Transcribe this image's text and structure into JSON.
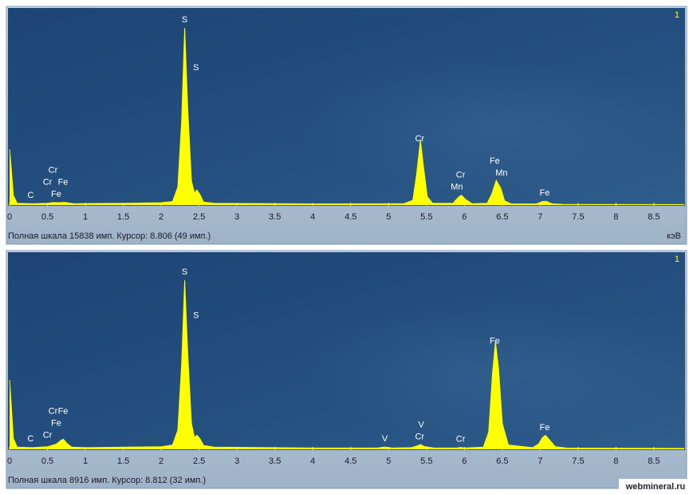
{
  "chart_data": [
    {
      "type": "area",
      "corner_label": "1",
      "x": [
        0,
        0.02,
        0.05,
        0.1,
        0.3,
        0.5,
        0.57,
        0.65,
        0.72,
        0.85,
        1.5,
        2.0,
        2.15,
        2.22,
        2.27,
        2.31,
        2.35,
        2.4,
        2.44,
        2.47,
        2.51,
        2.56,
        2.7,
        4.0,
        5.2,
        5.32,
        5.37,
        5.42,
        5.46,
        5.51,
        5.58,
        5.85,
        5.92,
        5.96,
        6.02,
        6.1,
        6.3,
        6.36,
        6.42,
        6.48,
        6.53,
        6.62,
        6.95,
        7.03,
        7.08,
        7.15,
        7.3,
        8.9
      ],
      "values": [
        4620,
        3200,
        800,
        150,
        120,
        150,
        220,
        200,
        230,
        120,
        150,
        200,
        300,
        1500,
        7000,
        14700,
        8000,
        2000,
        1000,
        1250,
        900,
        250,
        150,
        100,
        110,
        400,
        2600,
        5390,
        3200,
        700,
        150,
        150,
        650,
        830,
        450,
        120,
        150,
        900,
        2050,
        1400,
        350,
        100,
        100,
        300,
        320,
        120,
        60,
        40
      ],
      "color": "#ffff00",
      "xlim": [
        0,
        8.9
      ],
      "ylim": [
        0,
        15838
      ],
      "xticks": [
        0,
        0.5,
        1,
        1.5,
        2,
        2.5,
        3,
        3.5,
        4,
        4.5,
        5,
        5.5,
        6,
        6.5,
        7,
        7.5,
        8,
        8.5
      ],
      "annotations": [
        {
          "text": "C",
          "x": 0.277
        },
        {
          "text": "Fe",
          "x": 0.615
        },
        {
          "text": "Cr",
          "x": 0.5
        },
        {
          "text": "Fe",
          "x": 0.705
        },
        {
          "text": "Cr",
          "x": 0.573
        },
        {
          "text": "S",
          "x": 2.31
        },
        {
          "text": "S",
          "x": 2.46
        },
        {
          "text": "Cr",
          "x": 5.41
        },
        {
          "text": "Mn",
          "x": 5.9
        },
        {
          "text": "Cr",
          "x": 5.95
        },
        {
          "text": "Mn",
          "x": 6.49
        },
        {
          "text": "Fe",
          "x": 6.4
        },
        {
          "text": "Fe",
          "x": 7.06
        }
      ],
      "status": "Полная шкала 15838 имп. Курсор: 8.806  (49 имп.)",
      "x_unit": "кэВ"
    },
    {
      "type": "area",
      "corner_label": "1",
      "x": [
        0,
        0.02,
        0.05,
        0.1,
        0.3,
        0.5,
        0.62,
        0.68,
        0.71,
        0.75,
        0.82,
        1.0,
        2.0,
        2.15,
        2.22,
        2.27,
        2.31,
        2.35,
        2.4,
        2.44,
        2.47,
        2.51,
        2.56,
        2.7,
        4.0,
        4.85,
        4.95,
        5.05,
        5.3,
        5.37,
        5.42,
        5.47,
        5.6,
        5.9,
        5.95,
        6.0,
        6.25,
        6.32,
        6.37,
        6.41,
        6.45,
        6.5,
        6.58,
        6.9,
        6.98,
        7.03,
        7.07,
        7.12,
        7.2,
        7.35,
        8.9
      ],
      "values": [
        3240,
        2200,
        500,
        100,
        80,
        120,
        250,
        420,
        470,
        300,
        100,
        80,
        120,
        200,
        900,
        4000,
        7900,
        4500,
        1200,
        550,
        655,
        500,
        180,
        100,
        60,
        60,
        110,
        60,
        80,
        150,
        220,
        130,
        60,
        60,
        90,
        60,
        100,
        800,
        3500,
        5020,
        3800,
        1200,
        200,
        80,
        250,
        550,
        655,
        450,
        120,
        60,
        40
      ],
      "color": "#ffff00",
      "xlim": [
        0,
        8.9
      ],
      "ylim": [
        0,
        8916
      ],
      "xticks": [
        0,
        0.5,
        1,
        1.5,
        2,
        2.5,
        3,
        3.5,
        4,
        4.5,
        5,
        5.5,
        6,
        6.5,
        7,
        7.5,
        8,
        8.5
      ],
      "annotations": [
        {
          "text": "C",
          "x": 0.277
        },
        {
          "text": "Cr",
          "x": 0.5
        },
        {
          "text": "Fe",
          "x": 0.615
        },
        {
          "text": "Cr",
          "x": 0.573
        },
        {
          "text": "Fe",
          "x": 0.705
        },
        {
          "text": "S",
          "x": 2.31
        },
        {
          "text": "S",
          "x": 2.46
        },
        {
          "text": "V",
          "x": 4.95
        },
        {
          "text": "Cr",
          "x": 5.41
        },
        {
          "text": "V",
          "x": 5.43
        },
        {
          "text": "Cr",
          "x": 5.95
        },
        {
          "text": "Fe",
          "x": 6.4
        },
        {
          "text": "Fe",
          "x": 7.06
        }
      ],
      "status": "Полная шкала 8916 имп. Курсор: 8.812  (32 имп.)"
    }
  ],
  "watermark": "webmineral.ru"
}
